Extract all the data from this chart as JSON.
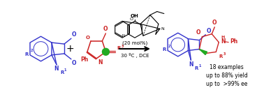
{
  "background_color": "#ffffff",
  "fig_width": 3.78,
  "fig_height": 1.42,
  "dpi": 100,
  "blue": "#3333cc",
  "red": "#cc2222",
  "green": "#22aa22",
  "black": "#000000",
  "stat1": "18 examples",
  "stat2": "up to 88% yield",
  "stat3": "up to  >99% ee",
  "mol_pct": "(20 mol%)",
  "conditions": "30 ºC , DCE"
}
